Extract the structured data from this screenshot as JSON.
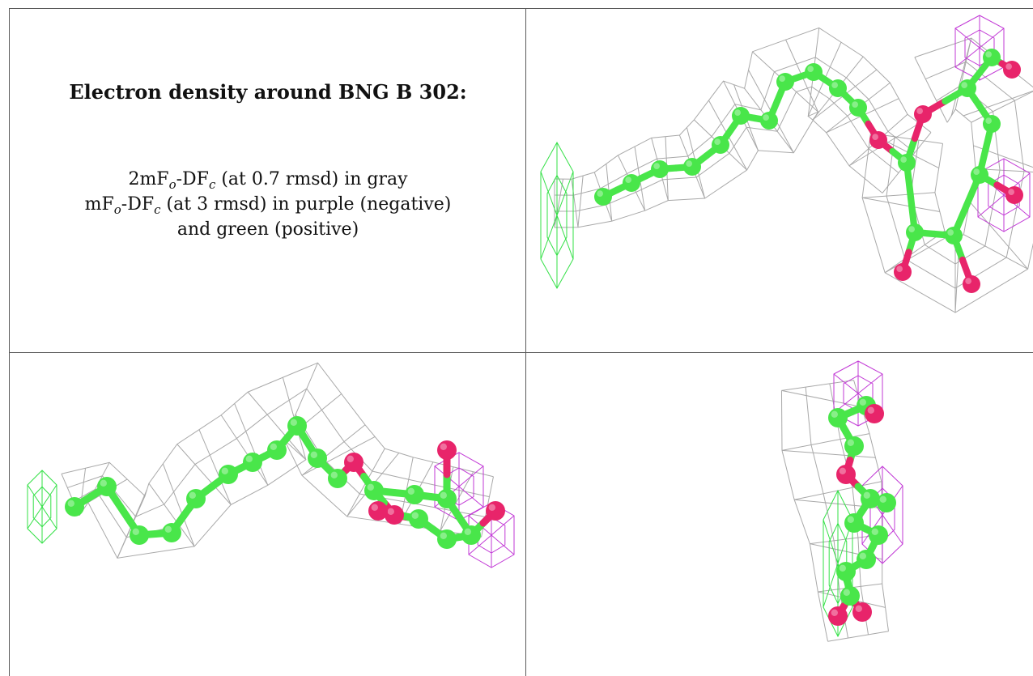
{
  "caption": {
    "title": "Electron density around BNG B 302:",
    "line1": {
      "prefix": "2mF",
      "sub1": "o",
      "mid": "-DF",
      "sub2": "c",
      "suffix": " (at 0.7 rmsd) in gray"
    },
    "line2": {
      "prefix": "mF",
      "sub1": "o",
      "mid": "-DF",
      "sub2": "c",
      "suffix": " (at 3 rmsd) in purple (negative)"
    },
    "line3": "and green (positive)"
  },
  "colors": {
    "carbon": "#49e64a",
    "oxygen": "#e8246a",
    "mesh_2fofc": "#9a9a9a",
    "mesh_negative": "#c23ad6",
    "mesh_positive": "#33e046",
    "table_border": "#5a5a5a"
  },
  "panels": [
    {
      "id": "text-cell"
    },
    {
      "id": "view-1"
    },
    {
      "id": "view-2"
    },
    {
      "id": "view-3"
    }
  ]
}
